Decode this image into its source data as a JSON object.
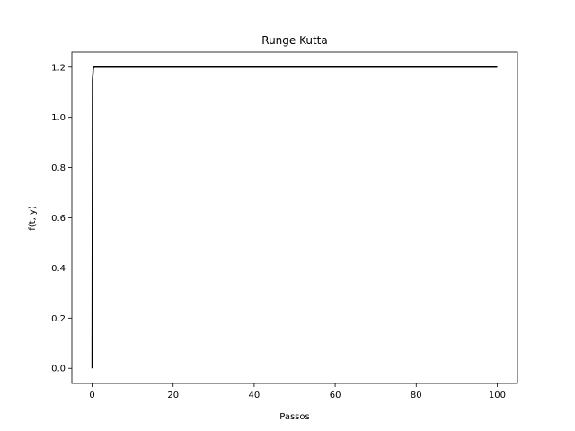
{
  "chart_data": {
    "type": "line",
    "title": "Runge Kutta",
    "xlabel": "Passos",
    "ylabel": "f(t, y)",
    "xlim": [
      -5,
      105
    ],
    "ylim": [
      -0.06,
      1.26
    ],
    "xticks": [
      0,
      20,
      40,
      60,
      80,
      100
    ],
    "xtick_labels": [
      "0",
      "20",
      "40",
      "60",
      "80",
      "100"
    ],
    "yticks": [
      0.0,
      0.2,
      0.4,
      0.6,
      0.8,
      1.0,
      1.2
    ],
    "ytick_labels": [
      "0.0",
      "0.2",
      "0.4",
      "0.6",
      "0.8",
      "1.0",
      "1.2"
    ],
    "grid": false,
    "series": [
      {
        "color": "#000000",
        "x": [
          0,
          0.1,
          0.3,
          0.5,
          1,
          2,
          5,
          10,
          20,
          40,
          60,
          80,
          100
        ],
        "y": [
          0.0,
          1.15,
          1.195,
          1.2,
          1.2,
          1.2,
          1.2,
          1.2,
          1.2,
          1.2,
          1.2,
          1.2,
          1.2
        ]
      }
    ]
  }
}
